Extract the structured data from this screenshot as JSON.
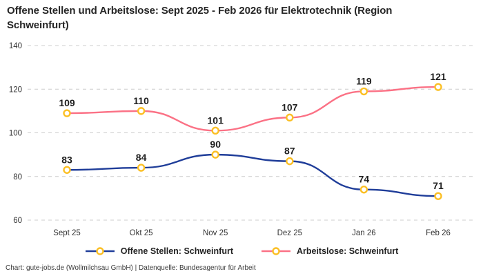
{
  "title": "Offene Stellen und Arbeitslose: Sept 2025 - Feb 2026 für Elektrotechnik (Region Schweinfurt)",
  "footer": "Chart: gute-jobs.de (Wollmilchsau GmbH) | Datenquelle: Bundesagentur für Arbeit",
  "chart_data": {
    "type": "line",
    "title": "Offene Stellen und Arbeitslose: Sept 2025 - Feb 2026 für Elektrotechnik (Region Schweinfurt)",
    "categories": [
      "Sept 25",
      "Okt 25",
      "Nov 25",
      "Dez 25",
      "Jan 26",
      "Feb 26"
    ],
    "series": [
      {
        "name": "Offene Stellen: Schweinfurt",
        "values": [
          83,
          84,
          90,
          87,
          74,
          71
        ],
        "color": "#1f3d99"
      },
      {
        "name": "Arbeitslose: Schweinfurt",
        "values": [
          109,
          110,
          101,
          107,
          119,
          121
        ],
        "color": "#fb7185"
      }
    ],
    "ylim": [
      60,
      140
    ],
    "yticks": [
      60,
      80,
      100,
      120,
      140
    ],
    "grid": true,
    "gridline_color": "#cccccc",
    "axis_label_color": "#333333",
    "data_label_color": "#1f1f1f",
    "legend_position": "bottom",
    "curve": "smooth",
    "data_labels": true,
    "marker": {
      "fill": "#ffffff",
      "stroke": "#fbbf24"
    }
  }
}
